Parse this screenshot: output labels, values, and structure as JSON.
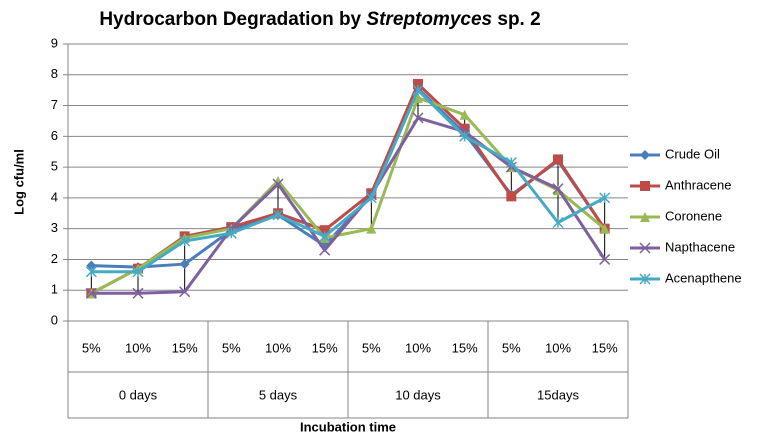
{
  "chart_data": {
    "type": "line",
    "title": [
      "Hydrocarbon Degradation by ",
      "Streptomyces",
      " sp. 2"
    ],
    "y_label": "Log cfu/ml",
    "x_label": "Incubation time",
    "categories": [
      "5%",
      "10%",
      "15%",
      "5%",
      "10%",
      "15%",
      "5%",
      "10%",
      "15%",
      "5%",
      "10%",
      "15%"
    ],
    "groups": [
      "0 days",
      "5 days",
      "10 days",
      "15days"
    ],
    "ylim": [
      0,
      9
    ],
    "yticks": [
      0,
      1,
      2,
      3,
      4,
      5,
      6,
      7,
      8,
      9
    ],
    "grid": true,
    "legend": "right",
    "series": [
      {
        "name": "Crude Oil",
        "color": "#4a7ebb",
        "marker": "diamond",
        "values": [
          1.8,
          1.75,
          1.85,
          2.95,
          3.45,
          2.45,
          4.1,
          7.55,
          6.1,
          4.1,
          5.2,
          3.0
        ]
      },
      {
        "name": "Anthracene",
        "color": "#be4b48",
        "marker": "square",
        "values": [
          0.9,
          1.7,
          2.75,
          3.05,
          3.5,
          2.95,
          4.15,
          7.7,
          6.25,
          4.05,
          5.25,
          3.0
        ]
      },
      {
        "name": "Coronene",
        "color": "#98b954",
        "marker": "triangle",
        "values": [
          0.9,
          1.7,
          2.7,
          3.0,
          4.55,
          2.7,
          3.0,
          7.25,
          6.7,
          5.0,
          4.25,
          3.0
        ]
      },
      {
        "name": "Napthacene",
        "color": "#7d60a0",
        "marker": "x",
        "values": [
          0.9,
          0.9,
          0.95,
          3.0,
          4.45,
          2.3,
          4.1,
          6.6,
          6.15,
          5.0,
          4.3,
          2.0
        ]
      },
      {
        "name": "Acenapthene",
        "color": "#46aac5",
        "marker": "star",
        "values": [
          1.6,
          1.6,
          2.6,
          2.85,
          3.45,
          2.75,
          4.0,
          7.5,
          6.0,
          5.15,
          3.2,
          4.0
        ]
      }
    ]
  }
}
